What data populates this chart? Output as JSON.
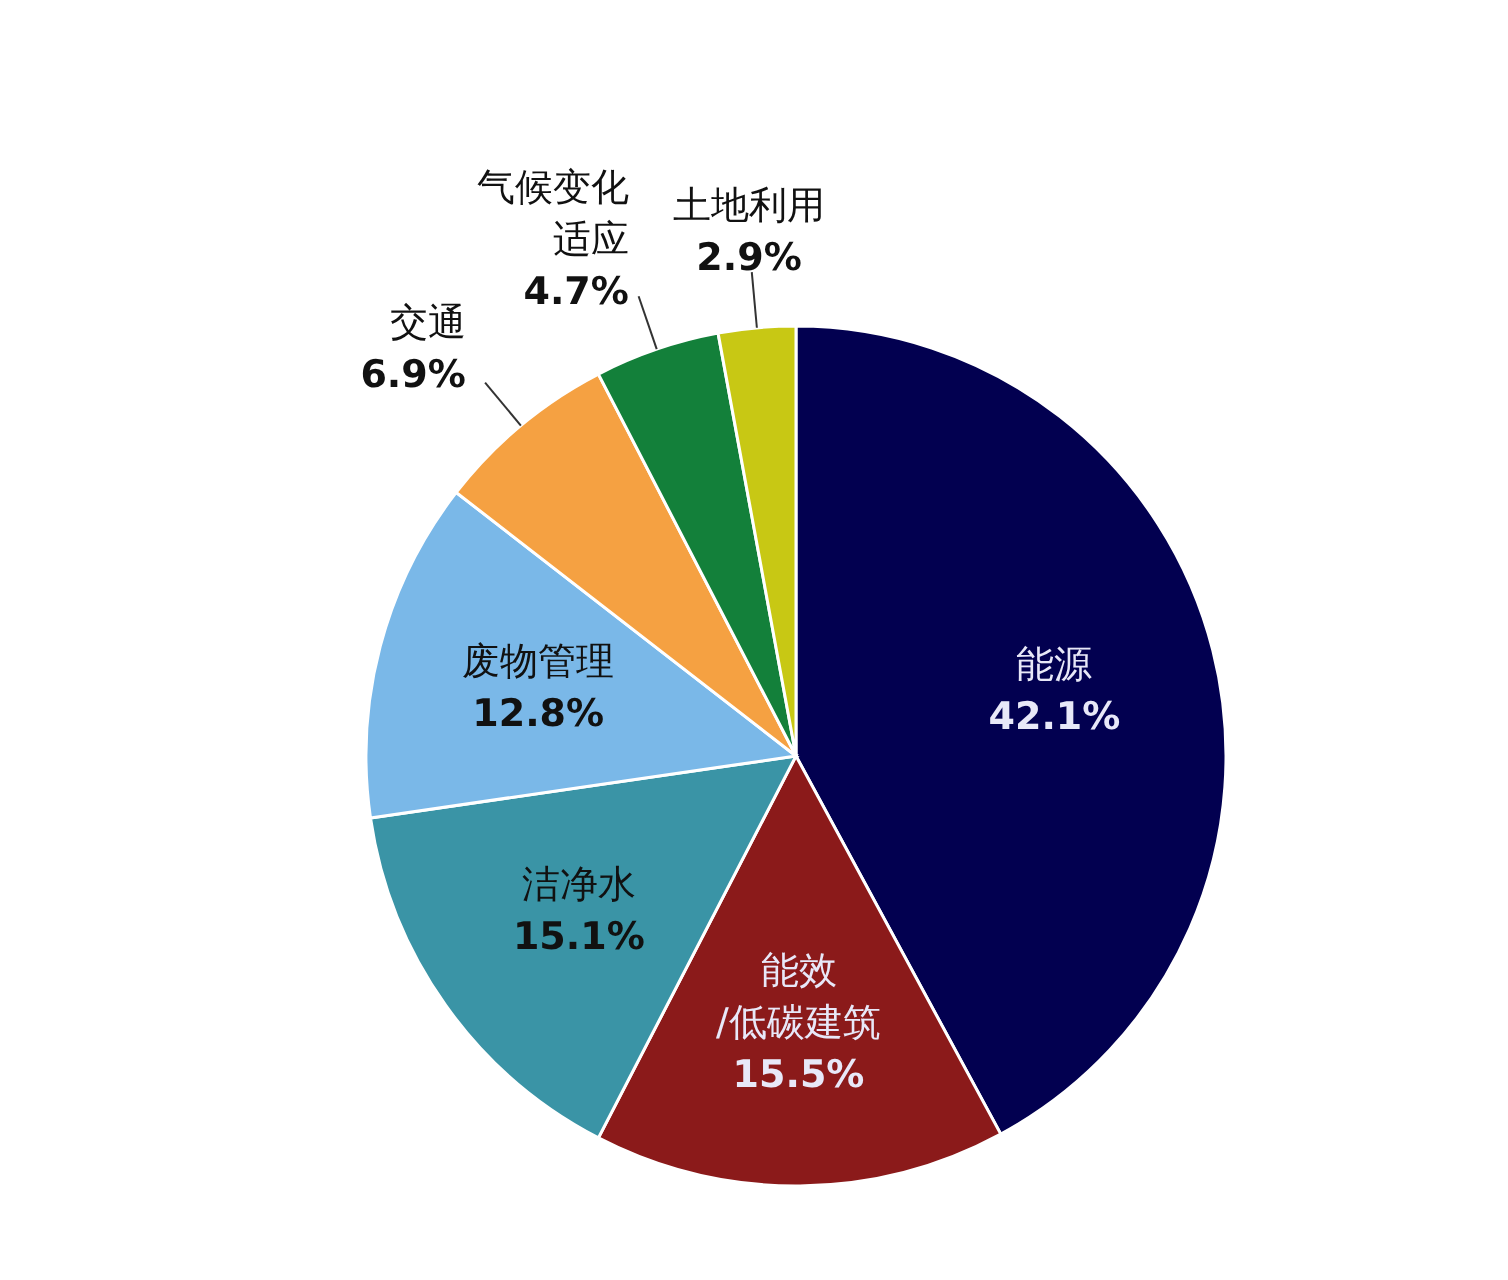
{
  "chart_data": {
    "type": "pie",
    "categories": [
      "能源",
      "能效/低碳建筑",
      "洁净水",
      "废物管理",
      "交通",
      "气候变化适应",
      "土地利用"
    ],
    "values": [
      42.1,
      15.5,
      15.1,
      12.8,
      6.9,
      4.7,
      2.9
    ],
    "colors": [
      "#020050",
      "#8b1a1a",
      "#3a94a6",
      "#7ab8e8",
      "#f5a142",
      "#13803a",
      "#c8c814"
    ],
    "value_labels": [
      "42.1%",
      "15.5%",
      "15.1%",
      "12.8%",
      "6.9%",
      "4.7%",
      "2.9%"
    ]
  }
}
